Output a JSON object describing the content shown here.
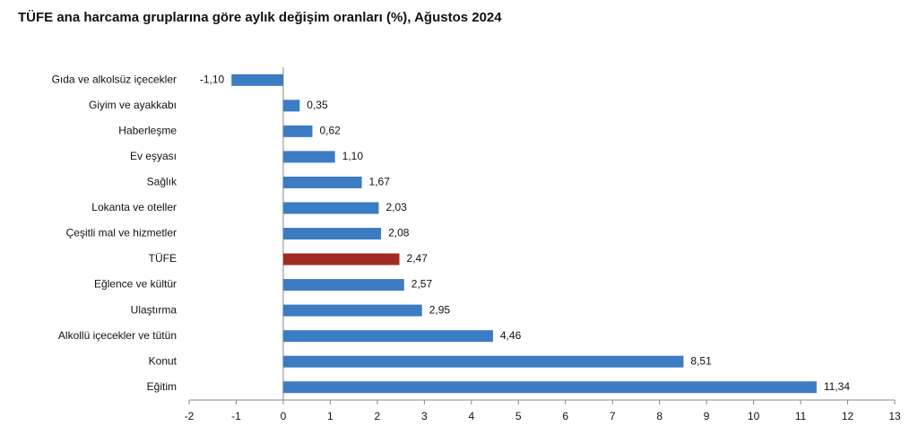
{
  "chart_data": {
    "type": "bar",
    "orientation": "horizontal",
    "title": "TÜFE ana harcama gruplarına göre aylık değişim oranları (%), Ağustos 2024",
    "categories": [
      "Gıda ve alkolsüz içecekler",
      "Giyim ve ayakkabı",
      "Haberleşme",
      "Ev eşyası",
      "Sağlık",
      "Lokanta ve oteller",
      "Çeşitli mal ve hizmetler",
      "TÜFE",
      "Eğlence ve kültür",
      "Ulaştırma",
      "Alkollü içecekler ve tütün",
      "Konut",
      "Eğitim"
    ],
    "values": [
      -1.1,
      0.35,
      0.62,
      1.1,
      1.67,
      2.03,
      2.08,
      2.47,
      2.57,
      2.95,
      4.46,
      8.51,
      11.34
    ],
    "value_labels": [
      "-1,10",
      "0,35",
      "0,62",
      "1,10",
      "1,67",
      "2,03",
      "2,08",
      "2,47",
      "2,57",
      "2,95",
      "4,46",
      "8,51",
      "11,34"
    ],
    "colors": [
      "#3b7cc4",
      "#3b7cc4",
      "#3b7cc4",
      "#3b7cc4",
      "#3b7cc4",
      "#3b7cc4",
      "#3b7cc4",
      "#a02b24",
      "#3b7cc4",
      "#3b7cc4",
      "#3b7cc4",
      "#3b7cc4",
      "#3b7cc4"
    ],
    "xlim": [
      -2,
      13
    ],
    "xticks": [
      -2,
      -1,
      0,
      1,
      2,
      3,
      4,
      5,
      6,
      7,
      8,
      9,
      10,
      11,
      12,
      13
    ],
    "grid": false
  }
}
